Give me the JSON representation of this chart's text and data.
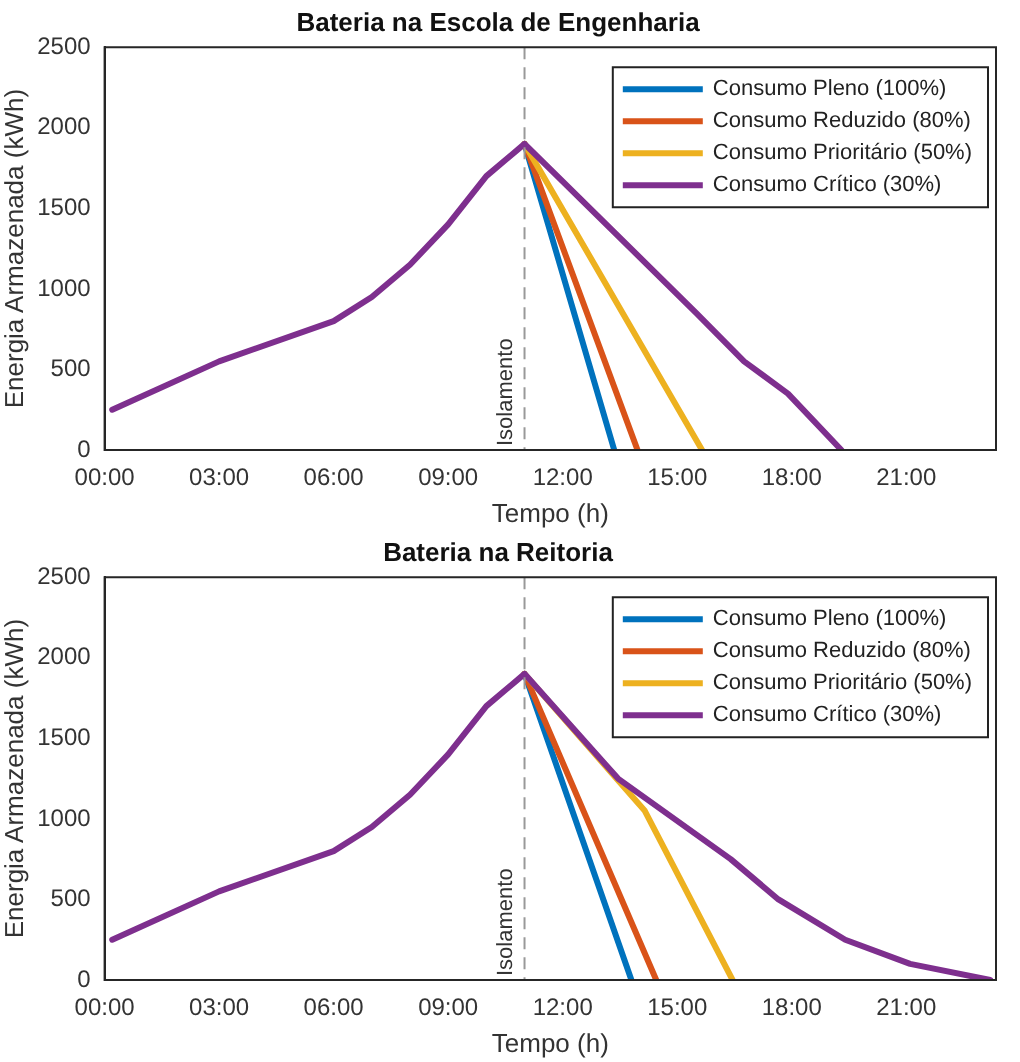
{
  "chart_data": [
    {
      "type": "line",
      "title": "Bateria na Escola de Engenharia",
      "xlabel": "Tempo (h)",
      "ylabel": "Energia Armazenada (kWh)",
      "xlim": [
        0,
        23.35
      ],
      "xticks": [
        {
          "value": 0,
          "label": "00:00"
        },
        {
          "value": 3,
          "label": "03:00"
        },
        {
          "value": 6,
          "label": "06:00"
        },
        {
          "value": 9,
          "label": "09:00"
        },
        {
          "value": 12,
          "label": "12:00"
        },
        {
          "value": 15,
          "label": "15:00"
        },
        {
          "value": 18,
          "label": "18:00"
        },
        {
          "value": 21,
          "label": "21:00"
        }
      ],
      "ylim": [
        0,
        2500
      ],
      "yticks": [
        0,
        500,
        1000,
        1500,
        2000,
        2500
      ],
      "legend": "top right",
      "marker": "none",
      "line_style": "solid",
      "ref_lines": [
        {
          "axis": "x",
          "value": 11,
          "label": "Isolamento",
          "color": "#999999",
          "line_style": "dashed"
        }
      ],
      "series": [
        {
          "name": "Consumo Pleno (100%)",
          "color": "#0072bd",
          "x": [
            11,
            13.35
          ],
          "values": [
            1900,
            0
          ]
        },
        {
          "name": "Consumo Reduzido (80%)",
          "color": "#d95319",
          "x": [
            11,
            13.96
          ],
          "values": [
            1900,
            0
          ]
        },
        {
          "name": "Consumo Prioritário (50%)",
          "color": "#edb120",
          "x": [
            11,
            15.65
          ],
          "values": [
            1900,
            0
          ]
        },
        {
          "name": "Consumo Crítico (30%)",
          "color": "#7e2f8e",
          "x": [
            0.2,
            3,
            6,
            7,
            8,
            9,
            10,
            11,
            15.5,
            16.75,
            17.9,
            19.3
          ],
          "values": [
            250,
            550,
            800,
            950,
            1150,
            1400,
            1700,
            1900,
            850,
            550,
            350,
            0
          ]
        }
      ]
    },
    {
      "type": "line",
      "title": "Bateria na Reitoria",
      "xlabel": "Tempo (h)",
      "ylabel": "Energia Armazenada (kWh)",
      "xlim": [
        0,
        23.35
      ],
      "xticks": [
        {
          "value": 0,
          "label": "00:00"
        },
        {
          "value": 3,
          "label": "03:00"
        },
        {
          "value": 6,
          "label": "06:00"
        },
        {
          "value": 9,
          "label": "09:00"
        },
        {
          "value": 12,
          "label": "12:00"
        },
        {
          "value": 15,
          "label": "15:00"
        },
        {
          "value": 18,
          "label": "18:00"
        },
        {
          "value": 21,
          "label": "21:00"
        }
      ],
      "ylim": [
        0,
        2500
      ],
      "yticks": [
        0,
        500,
        1000,
        1500,
        2000,
        2500
      ],
      "legend": "top right",
      "marker": "none",
      "line_style": "solid",
      "ref_lines": [
        {
          "axis": "x",
          "value": 11,
          "label": "Isolamento",
          "color": "#999999",
          "line_style": "dashed"
        }
      ],
      "series": [
        {
          "name": "Consumo Pleno (100%)",
          "color": "#0072bd",
          "x": [
            11,
            13.8
          ],
          "values": [
            1900,
            0
          ]
        },
        {
          "name": "Consumo Reduzido (80%)",
          "color": "#d95319",
          "x": [
            11,
            14.45
          ],
          "values": [
            1900,
            0
          ]
        },
        {
          "name": "Consumo Prioritário (50%)",
          "color": "#edb120",
          "x": [
            11,
            14.15,
            16.45
          ],
          "values": [
            1900,
            1050,
            0
          ]
        },
        {
          "name": "Consumo Crítico (30%)",
          "color": "#7e2f8e",
          "x": [
            0.2,
            3,
            6,
            7,
            8,
            9,
            10,
            11,
            13.45,
            16.4,
            17.65,
            19.4,
            21.1,
            23.2
          ],
          "values": [
            250,
            550,
            800,
            950,
            1150,
            1400,
            1700,
            1900,
            1250,
            750,
            500,
            250,
            100,
            0
          ]
        }
      ]
    }
  ]
}
